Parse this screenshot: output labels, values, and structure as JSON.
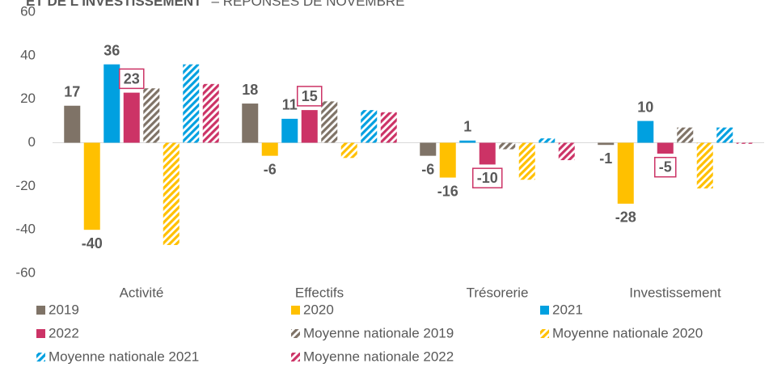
{
  "chart_data": {
    "type": "bar",
    "title": "ET DE L'INVESTISSEMENT",
    "subtitle": "– RÉPONSES DE NOVEMBRE",
    "categories": [
      "Activité",
      "Effectifs",
      "Trésorerie",
      "Investissement"
    ],
    "series": [
      {
        "name": "2019",
        "color": "#7f7367",
        "values": [
          17,
          18,
          -6,
          -1
        ],
        "show_labels": true
      },
      {
        "name": "2020",
        "color": "#ffc000",
        "values": [
          -40,
          -6,
          -16,
          -28
        ],
        "show_labels": true
      },
      {
        "name": "2021",
        "color": "#00a0e0",
        "values": [
          36,
          11,
          1,
          10
        ],
        "show_labels": true
      },
      {
        "name": "2022",
        "color": "#cc3366",
        "values": [
          23,
          15,
          -10,
          -5
        ],
        "show_labels": true,
        "label_box": true
      },
      {
        "name": "Moyenne nationale 2019",
        "color": "#7f7367",
        "values": [
          25,
          19,
          -3,
          7
        ],
        "hatch": true
      },
      {
        "name": "Moyenne nationale 2020",
        "color": "#ffc000",
        "values": [
          -47,
          -7,
          -17,
          -21
        ],
        "hatch": true
      },
      {
        "name": "Moyenne nationale 2021",
        "color": "#00a0e0",
        "values": [
          36,
          15,
          2,
          7
        ],
        "hatch": true
      },
      {
        "name": "Moyenne nationale 2022",
        "color": "#cc3366",
        "values": [
          27,
          14,
          -8,
          -0.5
        ],
        "hatch": true
      }
    ],
    "ylim": [
      -60,
      60
    ],
    "yticks": [
      -60,
      -40,
      -20,
      0,
      20,
      40,
      60
    ],
    "grid": false
  }
}
